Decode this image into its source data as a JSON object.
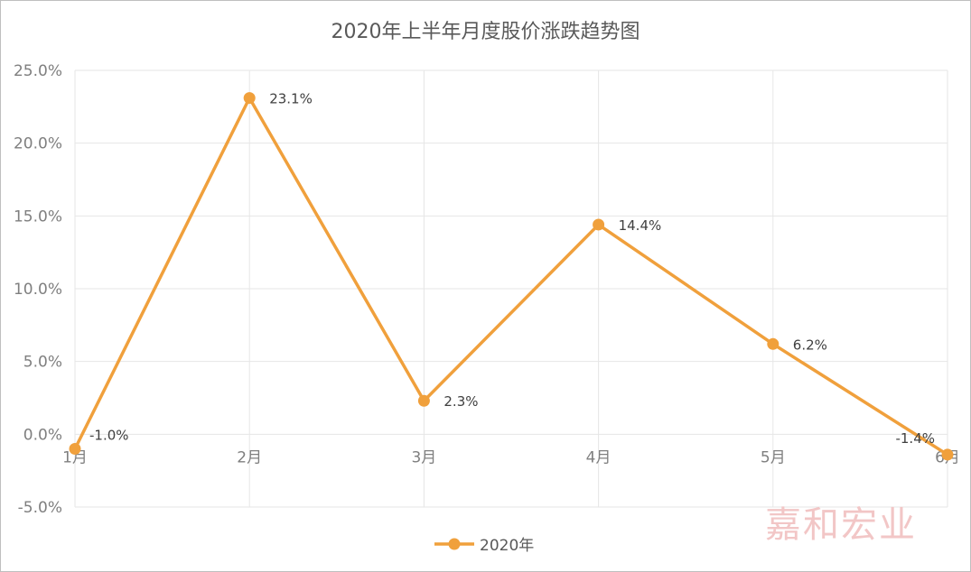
{
  "chart_data": {
    "type": "line",
    "title": "2020年上半年月度股价涨跌趋势图",
    "categories": [
      "1月",
      "2月",
      "3月",
      "4月",
      "5月",
      "6月"
    ],
    "series": [
      {
        "name": "2020年",
        "values": [
          -1.0,
          23.1,
          2.3,
          14.4,
          6.2,
          -1.4
        ],
        "color": "#f0a03c"
      }
    ],
    "data_labels": [
      "-1.0%",
      "23.1%",
      "2.3%",
      "14.4%",
      "6.2%",
      "-1.4%"
    ],
    "ylim": [
      -5,
      25
    ],
    "yticks": [
      -5,
      0,
      5,
      10,
      15,
      20,
      25
    ],
    "ytick_labels": [
      "-5.0%",
      "0.0%",
      "5.0%",
      "10.0%",
      "15.0%",
      "20.0%",
      "25.0%"
    ],
    "grid": true,
    "legend": "bottom"
  },
  "watermark": "嘉和宏业"
}
